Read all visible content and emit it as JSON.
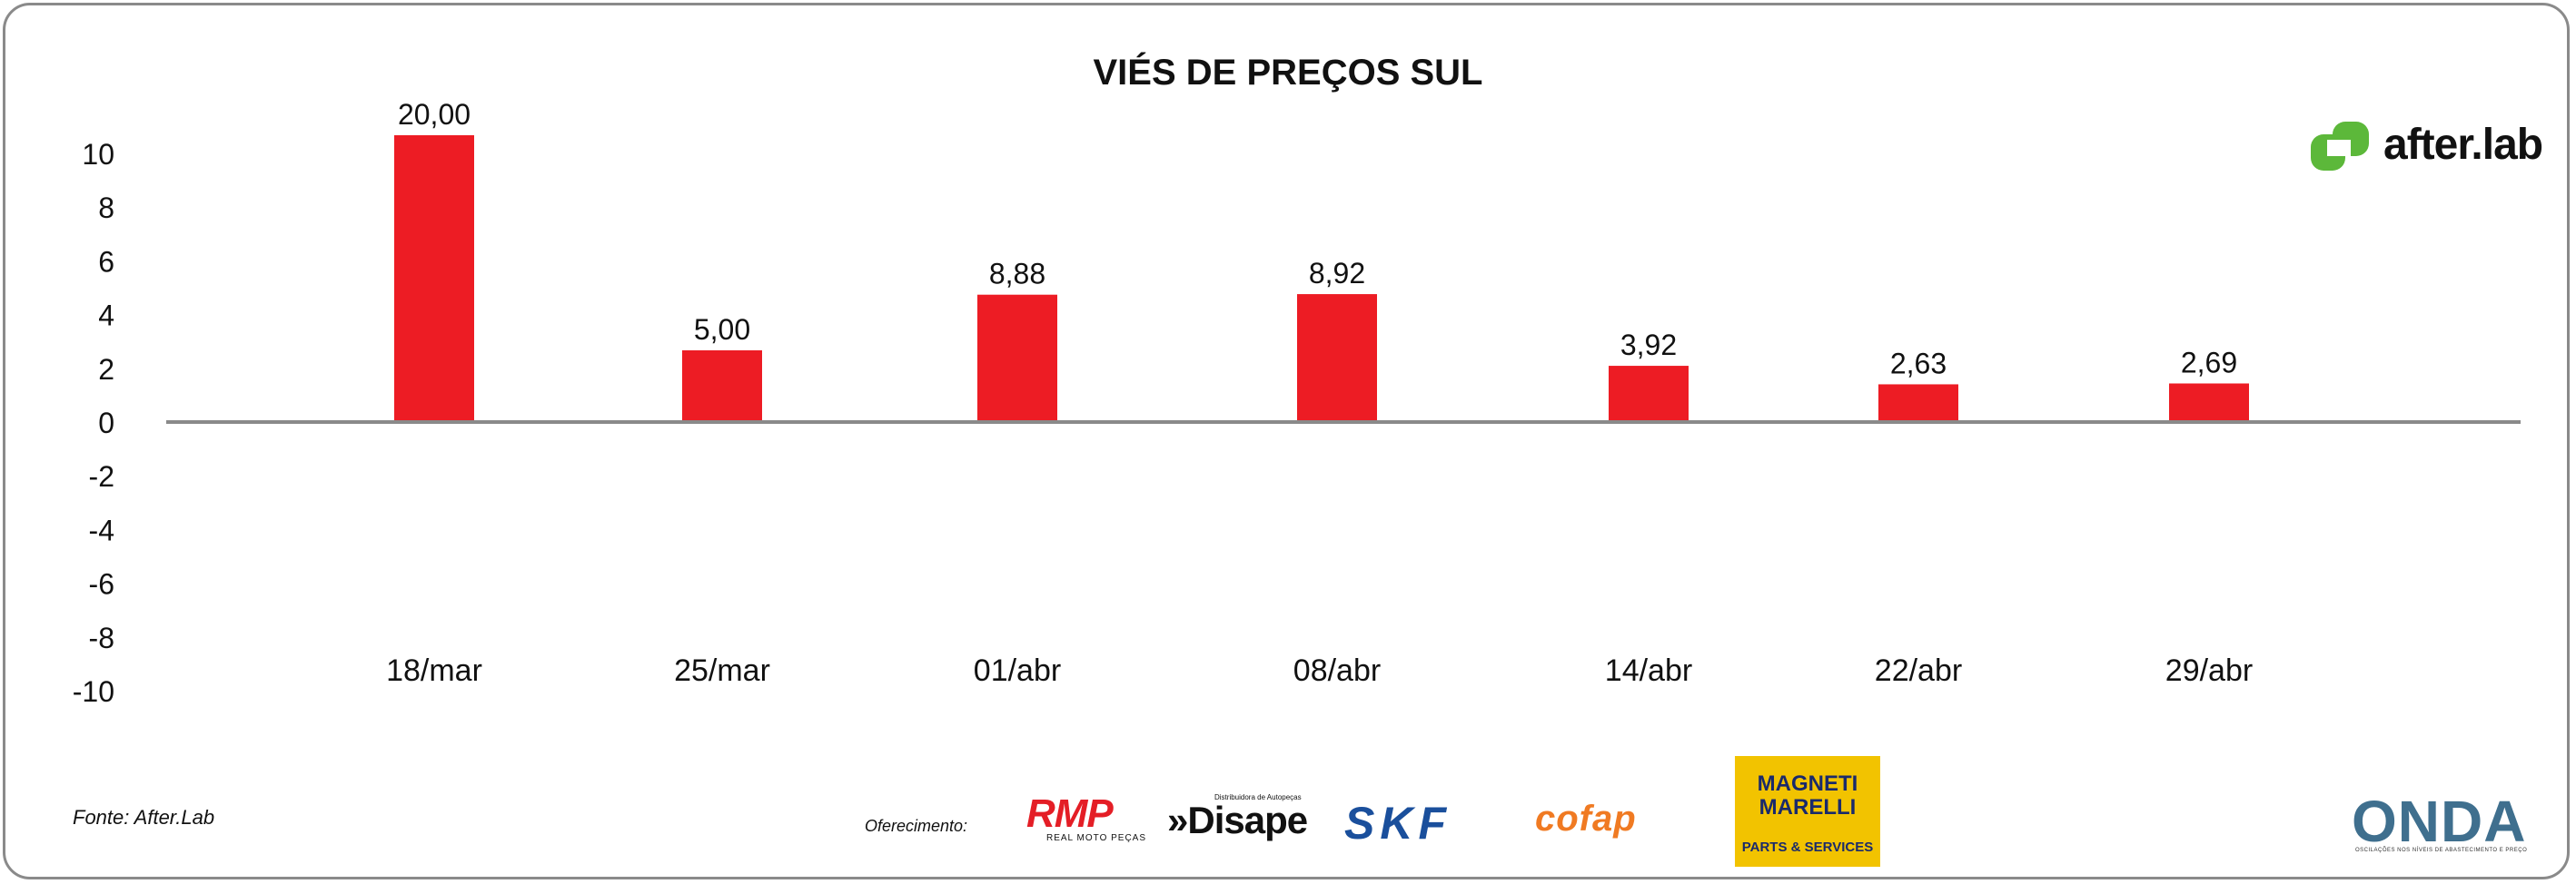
{
  "chart_data": {
    "type": "bar",
    "title": "VIÉS DE PREÇOS SUL",
    "categories": [
      "18/mar",
      "25/mar",
      "01/abr",
      "08/abr",
      "14/abr",
      "22/abr",
      "29/abr"
    ],
    "values": [
      20.0,
      5.0,
      8.88,
      8.92,
      3.92,
      2.63,
      2.69
    ],
    "data_labels": [
      "20,00",
      "5,00",
      "8,88",
      "8,92",
      "3,92",
      "2,63",
      "2,69"
    ],
    "y_ticks": [
      10,
      8,
      6,
      4,
      2,
      0,
      -2,
      -4,
      -6,
      -8,
      -10
    ],
    "ylim": [
      -10,
      10
    ],
    "xlabel": "",
    "ylabel": "",
    "grid": false,
    "bar_color": "#ed1c24",
    "axis_color": "#8a8a8a"
  },
  "footer": {
    "source": "Fonte: After.Lab",
    "sponsor_label": "Oferecimento:"
  },
  "logos": {
    "afterlab": {
      "text": "after.lab",
      "icon": "afterlab-icon",
      "color": "#5cb83a"
    },
    "rmp": {
      "text": "RMP",
      "sub": "REAL MOTO PEÇAS"
    },
    "disape": {
      "text": "»Disape",
      "sub": "Distribuidora de Autopeças"
    },
    "skf": {
      "text": "SKF"
    },
    "cofap": {
      "text": "cofap"
    },
    "magneti": {
      "text": "MAGNETI\nMARELLI",
      "sub": "PARTS & SERVICES"
    },
    "onda": {
      "text": "ONDA",
      "sub": "OSCILAÇÕES NOS NÍVEIS DE ABASTECIMENTO E PREÇO"
    }
  }
}
